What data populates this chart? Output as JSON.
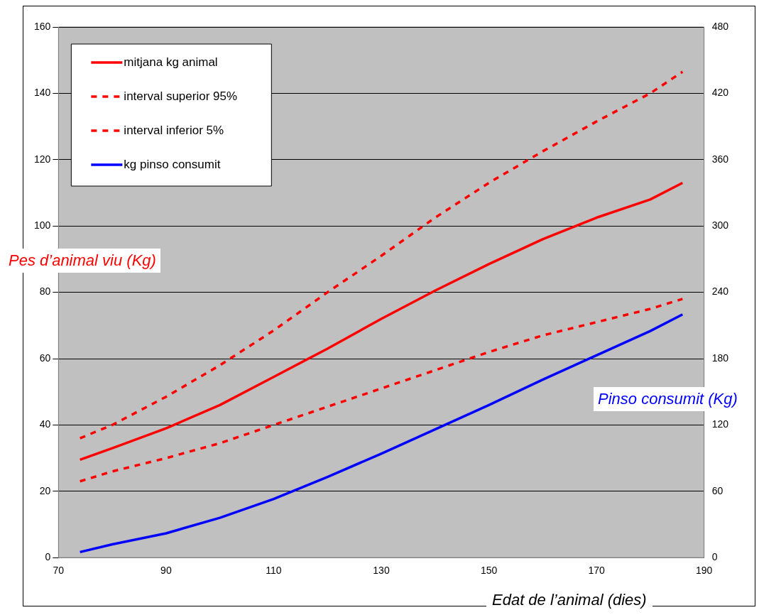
{
  "chart_data": {
    "type": "line",
    "xlabel": "Edat de l’animal (dies)",
    "ylabel": "Pes d’animal viu (Kg)",
    "y2label": "Pinso consumit (Kg)",
    "x": [
      74,
      80,
      90,
      100,
      110,
      120,
      130,
      140,
      150,
      160,
      170,
      180,
      186
    ],
    "series": [
      {
        "name": "mitjana kg animal",
        "color": "#ff0000",
        "line_style": "solid",
        "values": [
          29.5,
          33,
          39,
          46,
          54.5,
          63,
          72,
          80.5,
          88.5,
          96,
          102.5,
          108,
          113
        ]
      },
      {
        "name": "interval superior 95%",
        "color": "#ff0000",
        "line_style": "dashed",
        "values": [
          36,
          40,
          48.5,
          58,
          68.5,
          80,
          91,
          102.5,
          113,
          122.5,
          131.5,
          140,
          146.5
        ]
      },
      {
        "name": "interval inferior 5%",
        "color": "#ff0000",
        "line_style": "dashed",
        "values": [
          23,
          26,
          30,
          34.5,
          40,
          45.5,
          51,
          56.5,
          62,
          67,
          71,
          75,
          78
        ]
      },
      {
        "name": "kg pinso consumit",
        "color": "#0000ff",
        "line_style": "solid",
        "axis": "y2",
        "values": [
          5,
          12,
          22,
          36,
          53,
          73,
          94,
          116,
          138,
          161,
          183,
          205,
          220
        ]
      }
    ],
    "xlim": [
      70,
      190
    ],
    "xticks": [
      70,
      90,
      110,
      130,
      150,
      170,
      190
    ],
    "ylim": [
      0,
      160
    ],
    "yticks": [
      0,
      20,
      40,
      60,
      80,
      100,
      120,
      140,
      160
    ],
    "y2lim": [
      0,
      480
    ],
    "y2ticks": [
      0,
      60,
      120,
      180,
      240,
      300,
      360,
      420,
      480
    ],
    "grid": "y",
    "legend": "top left",
    "marker": "none"
  }
}
